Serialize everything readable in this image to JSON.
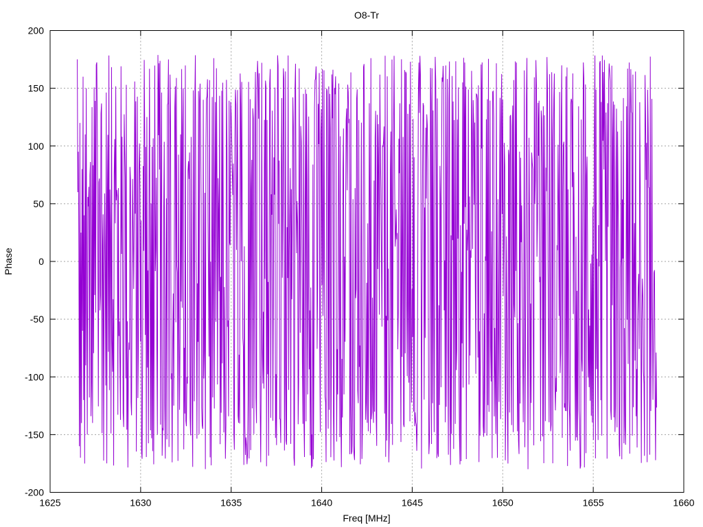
{
  "chart_data": {
    "type": "line",
    "title": "O8-Tr",
    "xlabel": "Freq [MHz]",
    "ylabel": "Phase",
    "xlim": [
      1625,
      1660
    ],
    "ylim": [
      -200,
      200
    ],
    "x_ticks": [
      1625,
      1630,
      1635,
      1640,
      1645,
      1650,
      1655,
      1660
    ],
    "y_ticks": [
      -200,
      -150,
      -100,
      -50,
      0,
      50,
      100,
      150,
      200
    ],
    "grid": true,
    "legend": "none",
    "series": [
      {
        "color": "#9400d3",
        "x_start": 1626.5,
        "x_end": 1658.5,
        "points": 1100,
        "values_sample": [
          175,
          60,
          95,
          10,
          -160,
          120,
          -170,
          25,
          -140,
          80,
          -60,
          160,
          -120,
          40,
          -175,
          110,
          -90,
          150,
          -30,
          -150
        ]
      }
    ]
  }
}
